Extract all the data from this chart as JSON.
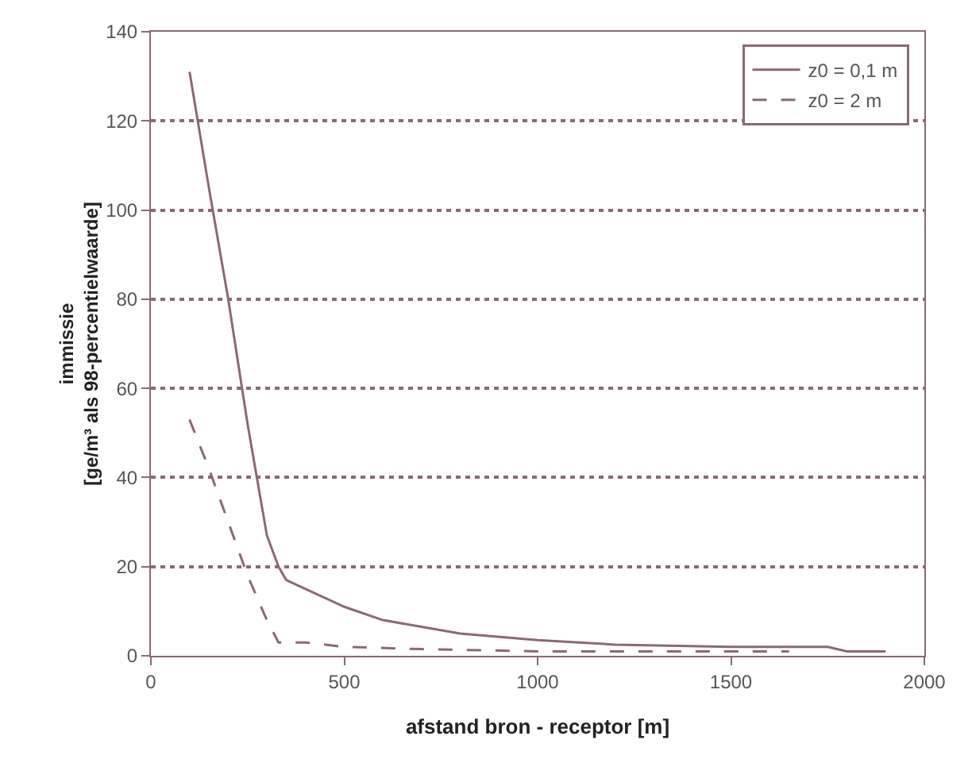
{
  "chart_data": {
    "type": "line",
    "xlabel": "afstand bron - receptor [m]",
    "ylabel": "immissie\n[ge/m³ als 98-percentielwaarde]",
    "xlim": [
      0,
      2000
    ],
    "xticks": [
      0,
      500,
      1000,
      1500,
      2000
    ],
    "ylim": [
      0,
      140
    ],
    "yticks": [
      0,
      20,
      40,
      60,
      80,
      100,
      120,
      140
    ],
    "grid": "y",
    "legend": "top right",
    "series": [
      {
        "name": "z0 = 0,1 m",
        "color": "#8a6878",
        "line_style": "solid",
        "x": [
          100,
          150,
          200,
          250,
          300,
          330,
          350,
          400,
          500,
          600,
          700,
          800,
          1000,
          1200,
          1500,
          1750,
          1800,
          1900
        ],
        "values": [
          131,
          105,
          80,
          52,
          27,
          20,
          17,
          15,
          11,
          8,
          6.5,
          5,
          3.5,
          2.5,
          2,
          2,
          1,
          1
        ]
      },
      {
        "name": "z0 = 2 m",
        "color": "#8a6878",
        "line_style": "dashed",
        "x": [
          100,
          150,
          200,
          250,
          300,
          330,
          400,
          500,
          700,
          1000,
          1300,
          1650
        ],
        "values": [
          53,
          42,
          30,
          18,
          8,
          3,
          3,
          2,
          1.5,
          1,
          1,
          1
        ]
      }
    ]
  }
}
